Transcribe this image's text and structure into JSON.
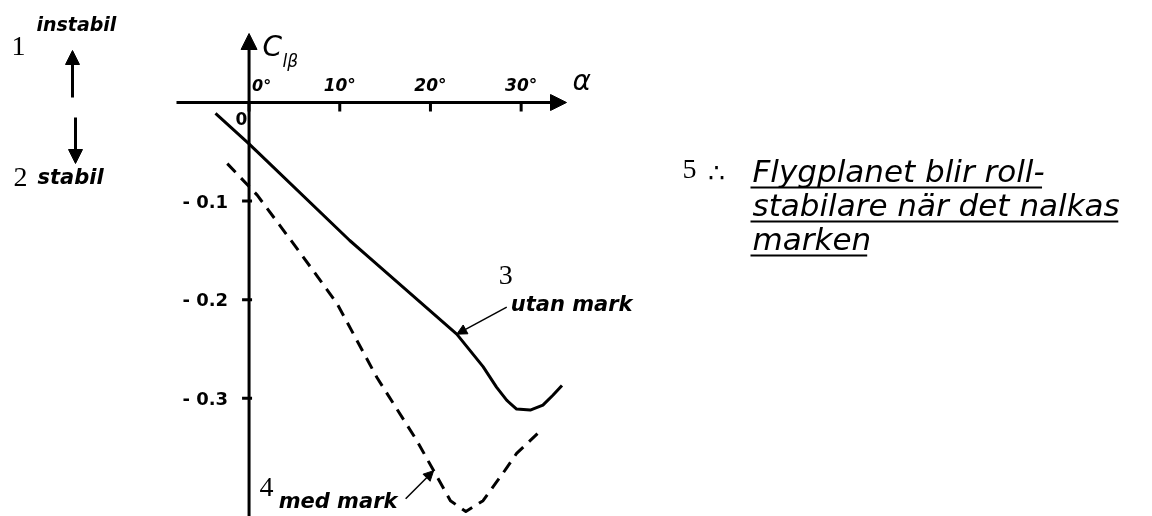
{
  "chart_data": {
    "type": "line",
    "xlabel": "α",
    "ylabel": "C$_{lβ}$",
    "xlim": [
      -8,
      35
    ],
    "ylim": [
      -0.42,
      0.07
    ],
    "xticks": [
      {
        "value": 0,
        "label": "0°"
      },
      {
        "value": 10,
        "label": "10°"
      },
      {
        "value": 20,
        "label": "20°"
      },
      {
        "value": 30,
        "label": "30°"
      }
    ],
    "yticks": [
      {
        "value": -0.1,
        "label": "- 0.1"
      },
      {
        "value": -0.2,
        "label": "- 0.2"
      },
      {
        "value": -0.3,
        "label": "- 0.3"
      }
    ],
    "series": [
      {
        "name": "utan mark",
        "color": "#000000",
        "line_style": "solid",
        "x": [
          -3.7,
          0,
          11.1,
          22.9,
          25.8,
          27.3,
          28.4,
          29.5,
          31.0,
          32.4,
          33.5,
          34.5
        ],
        "values": [
          -0.011,
          -0.042,
          -0.14,
          -0.235,
          -0.268,
          -0.289,
          -0.302,
          -0.311,
          -0.312,
          -0.307,
          -0.297,
          -0.287
        ]
      },
      {
        "name": "med mark",
        "color": "#000000",
        "line_style": "dashed",
        "x": [
          -2.4,
          0.9,
          5.6,
          9.7,
          14.1,
          18.5,
          22.2,
          23.9,
          25.8,
          28.0,
          29.5,
          31.8
        ],
        "values": [
          -0.062,
          -0.094,
          -0.152,
          -0.204,
          -0.279,
          -0.343,
          -0.404,
          -0.415,
          -0.404,
          -0.376,
          -0.356,
          -0.336
        ]
      }
    ],
    "annotations": [
      "1",
      "instabil",
      "2",
      "stabil",
      "0",
      {
        "text": "3",
        "x": 22.9,
        "y": -0.235
      },
      "4",
      "5",
      "∴",
      "Flygplanet blir roll-\nstabilare när det nalkas\nmarken"
    ]
  }
}
